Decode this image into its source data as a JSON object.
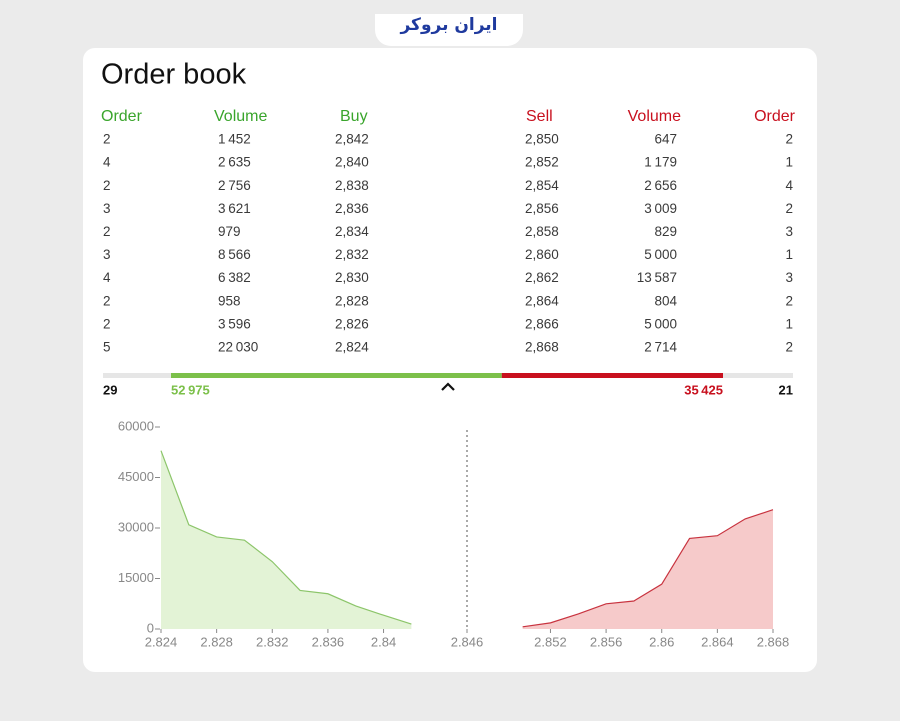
{
  "logo": "ایران بروکر",
  "title": "Order book",
  "table": {
    "headers": [
      "Order",
      "Volume",
      "Buy",
      "Sell",
      "Volume",
      "Order"
    ],
    "rows": [
      [
        "2",
        "1 452",
        "2,842",
        "2,850",
        "647",
        "2"
      ],
      [
        "4",
        "2 635",
        "2,840",
        "2,852",
        "1 179",
        "1"
      ],
      [
        "2",
        "2 756",
        "2,838",
        "2,854",
        "2 656",
        "4"
      ],
      [
        "3",
        "3 621",
        "2,836",
        "2,856",
        "3 009",
        "2"
      ],
      [
        "2",
        "979",
        "2,834",
        "2,858",
        "829",
        "3"
      ],
      [
        "3",
        "8 566",
        "2,832",
        "2,860",
        "5 000",
        "1"
      ],
      [
        "4",
        "6 382",
        "2,830",
        "2,862",
        "13 587",
        "3"
      ],
      [
        "2",
        "958",
        "2,828",
        "2,864",
        "804",
        "2"
      ],
      [
        "2",
        "3 596",
        "2,826",
        "2,866",
        "5 000",
        "1"
      ],
      [
        "5",
        "22 030",
        "2,824",
        "2,868",
        "2 714",
        "2"
      ]
    ]
  },
  "summary": {
    "buy_orders": "29",
    "buy_volume": {
      "value": 52975,
      "label": "52 975"
    },
    "sell_volume": {
      "value": 35425,
      "label": "35 425"
    },
    "sell_orders": "21"
  },
  "chart_data": {
    "type": "area",
    "xlim": [
      2.824,
      2.868
    ],
    "ylim": [
      0,
      60000
    ],
    "xticks": [
      2.824,
      2.828,
      2.832,
      2.836,
      2.84,
      2.846,
      2.852,
      2.856,
      2.86,
      2.864,
      2.868
    ],
    "yticks": [
      0,
      15000,
      30000,
      45000,
      60000
    ],
    "series": [
      {
        "color": "#8cc56a",
        "fill": "#e3f3d6",
        "x": [
          2.824,
          2.826,
          2.828,
          2.83,
          2.832,
          2.834,
          2.836,
          2.838,
          2.84,
          2.842
        ],
        "values": [
          52975,
          30945,
          27349,
          26391,
          20009,
          11443,
          10464,
          6843,
          4087,
          1452
        ]
      },
      {
        "color": "#c8333f",
        "fill": "#f6caca",
        "x": [
          2.85,
          2.852,
          2.854,
          2.856,
          2.858,
          2.86,
          2.862,
          2.864,
          2.866,
          2.868
        ],
        "values": [
          647,
          1826,
          4482,
          7491,
          8320,
          13320,
          26907,
          27711,
          32711,
          35425
        ]
      }
    ]
  }
}
